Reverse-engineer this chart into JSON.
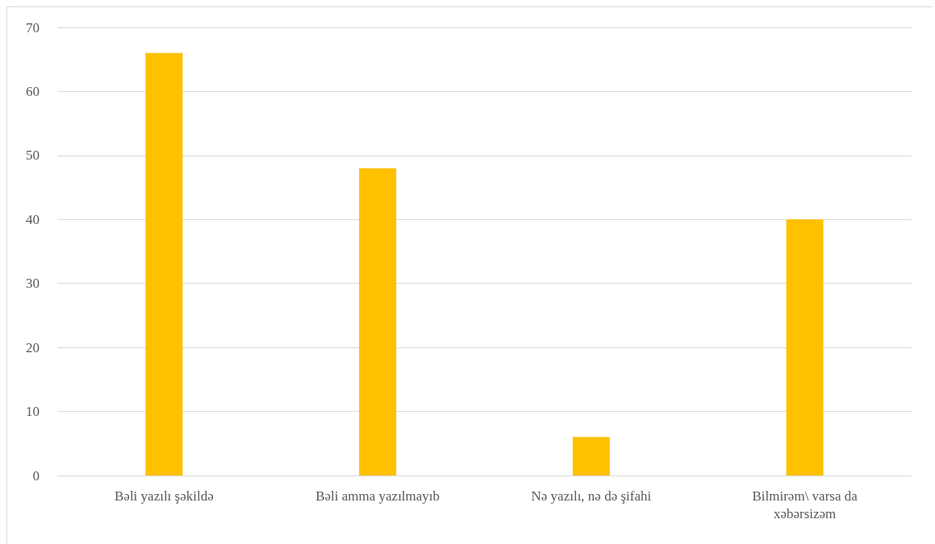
{
  "chart_data": {
    "type": "bar",
    "categories": [
      "Bəli yazılı şəkildə",
      "Bəli amma yazılmayıb",
      "Nə yazılı, nə də şifahi",
      "Bilmirəm\\ varsa da xəbərsizəm"
    ],
    "values": [
      66,
      48,
      6,
      40
    ],
    "color": "#ffc000",
    "ylim": [
      0,
      70
    ],
    "yticks": [
      0,
      10,
      20,
      30,
      40,
      50,
      60,
      70
    ],
    "grid": "y"
  }
}
